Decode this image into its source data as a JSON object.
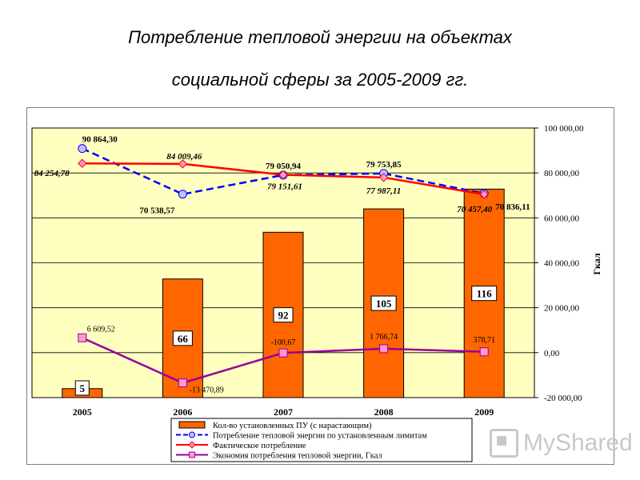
{
  "title_line1": "Потребление тепловой энергии на объектах",
  "title_line2": "социальной сферы за 2005-2009 гг.",
  "watermark": "MyShared",
  "chart_data": {
    "type": "bar",
    "categories": [
      "2005",
      "2006",
      "2007",
      "2008",
      "2009"
    ],
    "y_right_label": "Гкал",
    "y_right_ticks": [
      "100 000,00",
      "80 000,00",
      "60 000,00",
      "40 000,00",
      "20 000,00",
      "0,00",
      "-20 000,00"
    ],
    "ylim": [
      -20000,
      100000
    ],
    "grid": true,
    "colors": {
      "plot_bg": "#ffffc0",
      "bar": "#ff6600",
      "limit_line": "#0000ff",
      "actual_line": "#ff0000",
      "actual_marker": "#ff99cc",
      "saving_line": "#990099",
      "saving_marker": "#ff99cc"
    },
    "series": [
      {
        "name": "Кол-во установленных ПУ (с нарастающим)",
        "kind": "bar",
        "values": [
          5,
          66,
          92,
          105,
          116
        ],
        "labels": [
          "5",
          "66",
          "92",
          "105",
          "116"
        ]
      },
      {
        "name": "Потребление тепловой энергии по установленным лимитам",
        "kind": "dashed-line",
        "values": [
          90864.3,
          70538.57,
          79050.94,
          79753.85,
          70836.11
        ],
        "labels": [
          "90 864,30",
          "70 538,57",
          "79 050,94",
          "79 753,85",
          "70 836,11"
        ]
      },
      {
        "name": "Фактическое потребление",
        "kind": "line",
        "values": [
          84254.78,
          84009.46,
          79151.61,
          77987.11,
          70457.4
        ],
        "labels": [
          "84 254,78",
          "84 009,46",
          "79 151,61",
          "77 987,11",
          "70 457,40"
        ]
      },
      {
        "name": "Экономия потребления тепловой энергии, Гкал",
        "kind": "line",
        "values": [
          6609.52,
          -13470.89,
          -100.67,
          1766.74,
          378.71
        ],
        "labels": [
          "6 609,52",
          "-13 470,89",
          "-100,67",
          "1 766,74",
          "378,71"
        ]
      }
    ]
  }
}
